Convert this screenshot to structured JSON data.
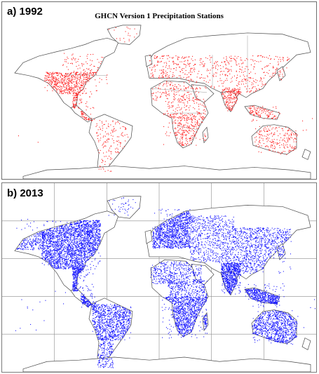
{
  "figure": {
    "panels": [
      {
        "label": "a) 1992",
        "title": "GHCN Version 1 Precipitation Stations",
        "station_color": "#ff2020",
        "gridlines": false
      },
      {
        "label": "b) 2013",
        "title": "",
        "station_color": "#1a1aff",
        "gridlines": true
      }
    ],
    "coastline_color": "#4a4a4a",
    "border_color": "#9a9a9a"
  }
}
